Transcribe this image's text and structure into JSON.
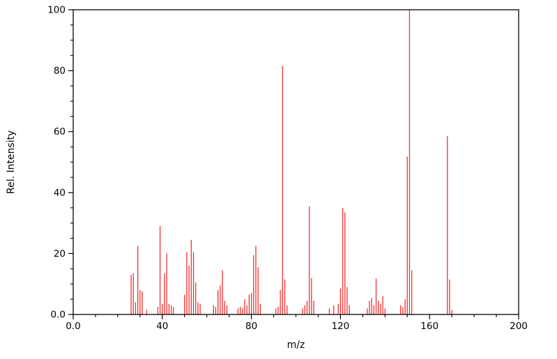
{
  "chart_data": {
    "type": "bar",
    "subtype": "mass-spectrum-stick-plot",
    "title": "",
    "xlabel": "m/z",
    "ylabel": "Rel. Intensity",
    "xlim": [
      0,
      200
    ],
    "ylim": [
      0,
      100
    ],
    "x_major_ticks": [
      0,
      40,
      80,
      120,
      160,
      200
    ],
    "x_major_tick_labels": [
      "0.0",
      "40",
      "80",
      "120",
      "160",
      "200"
    ],
    "x_minor_tick_step": 10,
    "y_major_ticks": [
      0,
      20,
      40,
      60,
      80,
      100
    ],
    "y_major_tick_labels": [
      "0.0",
      "20",
      "40",
      "60",
      "80",
      "100"
    ],
    "y_minor_tick_step": 5,
    "grid": false,
    "legend": false,
    "stick_color": "#f03030",
    "axis_color": "#000000",
    "background_color": "#ffffff",
    "peaks": [
      [
        26,
        13.0
      ],
      [
        27,
        13.5
      ],
      [
        28,
        4.0
      ],
      [
        29,
        22.5
      ],
      [
        30,
        8.0
      ],
      [
        31,
        7.5
      ],
      [
        33,
        1.5
      ],
      [
        38,
        2.5
      ],
      [
        39,
        29.0
      ],
      [
        40,
        3.5
      ],
      [
        41,
        13.5
      ],
      [
        42,
        20.0
      ],
      [
        43,
        3.5
      ],
      [
        44,
        3.0
      ],
      [
        45,
        2.5
      ],
      [
        50,
        6.5
      ],
      [
        51,
        20.5
      ],
      [
        52,
        16.0
      ],
      [
        53,
        24.5
      ],
      [
        54,
        20.5
      ],
      [
        55,
        10.5
      ],
      [
        56,
        4.0
      ],
      [
        57,
        3.5
      ],
      [
        63,
        3.0
      ],
      [
        64,
        2.5
      ],
      [
        65,
        8.0
      ],
      [
        66,
        9.5
      ],
      [
        67,
        14.5
      ],
      [
        68,
        4.5
      ],
      [
        69,
        3.0
      ],
      [
        74,
        2.0
      ],
      [
        75,
        2.5
      ],
      [
        76,
        2.0
      ],
      [
        77,
        5.0
      ],
      [
        78,
        3.0
      ],
      [
        79,
        6.5
      ],
      [
        80,
        7.0
      ],
      [
        81,
        19.5
      ],
      [
        82,
        22.5
      ],
      [
        83,
        15.5
      ],
      [
        84,
        3.5
      ],
      [
        91,
        2.0
      ],
      [
        92,
        2.5
      ],
      [
        93,
        8.0
      ],
      [
        94,
        81.5
      ],
      [
        95,
        11.5
      ],
      [
        96,
        3.0
      ],
      [
        103,
        2.0
      ],
      [
        104,
        3.0
      ],
      [
        105,
        4.5
      ],
      [
        106,
        35.5
      ],
      [
        107,
        12.0
      ],
      [
        108,
        4.5
      ],
      [
        115,
        2.0
      ],
      [
        117,
        3.0
      ],
      [
        119,
        3.5
      ],
      [
        120,
        8.5
      ],
      [
        121,
        35.0
      ],
      [
        122,
        33.5
      ],
      [
        123,
        9.0
      ],
      [
        124,
        3.0
      ],
      [
        132,
        2.0
      ],
      [
        133,
        4.5
      ],
      [
        134,
        5.5
      ],
      [
        135,
        3.0
      ],
      [
        136,
        11.8
      ],
      [
        137,
        4.5
      ],
      [
        138,
        3.5
      ],
      [
        139,
        6.0
      ],
      [
        140,
        2.0
      ],
      [
        147,
        3.0
      ],
      [
        148,
        2.5
      ],
      [
        149,
        5.0
      ],
      [
        150,
        51.8
      ],
      [
        151,
        100.0
      ],
      [
        152,
        14.5
      ],
      [
        168,
        58.5
      ],
      [
        169,
        11.5
      ],
      [
        170,
        1.5
      ]
    ]
  }
}
